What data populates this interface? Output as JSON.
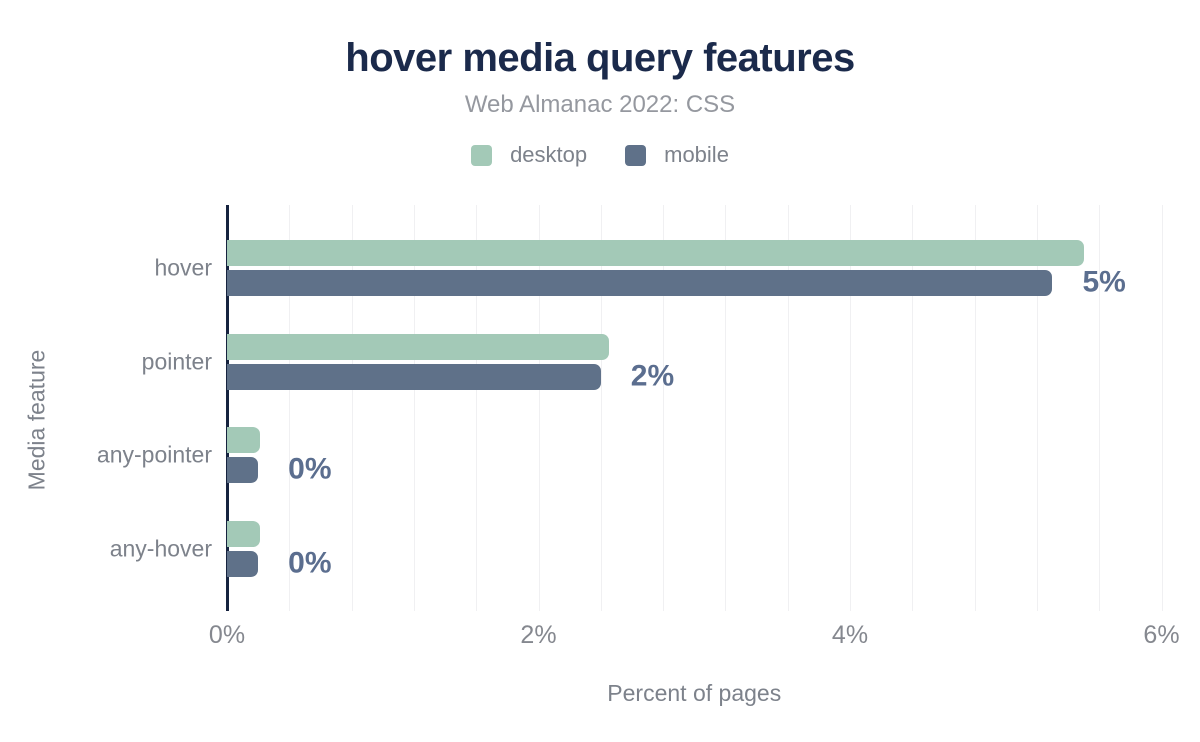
{
  "chart_data": {
    "type": "bar",
    "orientation": "horizontal",
    "title": "hover media query features",
    "subtitle": "Web Almanac 2022: CSS",
    "categories": [
      "hover",
      "pointer",
      "any-pointer",
      "any-hover"
    ],
    "series": [
      {
        "name": "desktop",
        "color": "#a3c9b7",
        "values": [
          5.5,
          2.45,
          0.21,
          0.21
        ]
      },
      {
        "name": "mobile",
        "color": "#5f7189",
        "values": [
          5.3,
          2.4,
          0.2,
          0.2
        ]
      }
    ],
    "value_labels": [
      "5%",
      "2%",
      "0%",
      "0%"
    ],
    "xlabel": "Percent of pages",
    "ylabel": "Media feature",
    "x_ticks": [
      {
        "value": 0,
        "label": "0%"
      },
      {
        "value": 2,
        "label": "2%"
      },
      {
        "value": 4,
        "label": "4%"
      },
      {
        "value": 6,
        "label": "6%"
      }
    ],
    "xlim": [
      0,
      6.2
    ],
    "minor_gridline_step": 0.4,
    "grid": true,
    "legend_position": "top",
    "colors": {
      "title": "#1b2a4b",
      "subtitle": "#95989f",
      "axis_line": "#16233f",
      "gridline": "#f0f0f2",
      "value_label": "#5b6e8f",
      "category_label": "#7d828b",
      "tick_label": "#85888f"
    }
  }
}
